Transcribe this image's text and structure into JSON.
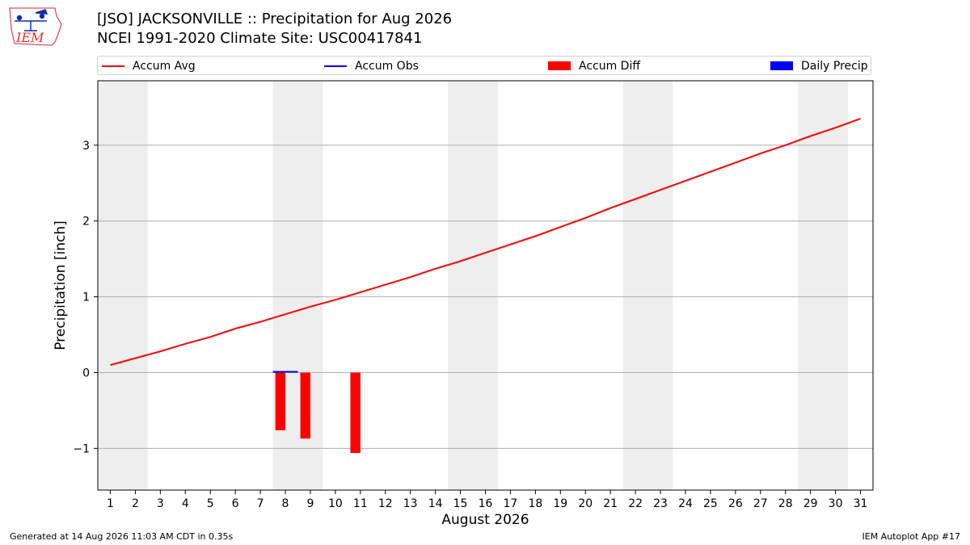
{
  "logo": {
    "text": "IEM",
    "icon": "iowa-weather-station-logo",
    "color": "#e03030"
  },
  "title": {
    "line1": "[JSO] JACKSONVILLE :: Precipitation for Aug 2026",
    "line2": "NCEI 1991-2020 Climate Site: USC00417841"
  },
  "legend": {
    "items": [
      {
        "label": "Accum Avg",
        "kind": "line",
        "color": "#ff0000"
      },
      {
        "label": "Accum Obs",
        "kind": "line",
        "color": "#0000ff"
      },
      {
        "label": "Accum Diff",
        "kind": "box",
        "color": "#ff0000"
      },
      {
        "label": "Daily Precip",
        "kind": "box",
        "color": "#0000ff"
      }
    ]
  },
  "footer": {
    "left": "Generated at 14 Aug 2026 11:03 AM CDT in 0.35s",
    "right": "IEM Autoplot App #17"
  },
  "chart_data": {
    "type": "line",
    "xlabel": "August 2026",
    "ylabel": "Precipitation [inch]",
    "xlim": [
      0.5,
      31.5
    ],
    "ylim": [
      -1.55,
      3.85
    ],
    "x_ticks": [
      1,
      2,
      3,
      4,
      5,
      6,
      7,
      8,
      9,
      10,
      11,
      12,
      13,
      14,
      15,
      16,
      17,
      18,
      19,
      20,
      21,
      22,
      23,
      24,
      25,
      26,
      27,
      28,
      29,
      30,
      31
    ],
    "y_ticks": [
      {
        "value": 3,
        "label": "3"
      },
      {
        "value": 2,
        "label": "2"
      },
      {
        "value": 1,
        "label": "1"
      },
      {
        "value": 0,
        "label": "0"
      },
      {
        "value": -1,
        "label": "−1"
      }
    ],
    "grid": "horizontal",
    "legend_position": "top",
    "weekend_shading": {
      "color": "#eeeeee",
      "ranges": [
        [
          0.5,
          2.5
        ],
        [
          7.5,
          9.5
        ],
        [
          14.5,
          16.5
        ],
        [
          21.5,
          23.5
        ],
        [
          28.5,
          30.5
        ]
      ]
    },
    "series": [
      {
        "name": "Accum Avg",
        "kind": "line",
        "color": "#ff0000",
        "x": [
          1,
          2,
          3,
          4,
          5,
          6,
          7,
          8,
          9,
          10,
          11,
          12,
          13,
          14,
          15,
          16,
          17,
          18,
          19,
          20,
          21,
          22,
          23,
          24,
          25,
          26,
          27,
          28,
          29,
          30,
          31
        ],
        "values": [
          0.1,
          0.19,
          0.28,
          0.38,
          0.47,
          0.58,
          0.67,
          0.77,
          0.87,
          0.96,
          1.06,
          1.16,
          1.26,
          1.37,
          1.47,
          1.58,
          1.69,
          1.8,
          1.92,
          2.04,
          2.17,
          2.29,
          2.41,
          2.53,
          2.65,
          2.77,
          2.89,
          3.0,
          3.12,
          3.23,
          3.35
        ]
      },
      {
        "name": "Accum Obs",
        "kind": "line",
        "color": "#0000ff",
        "x": [
          8,
          9
        ],
        "values": [
          0.01,
          0.01
        ]
      },
      {
        "name": "Accum Diff",
        "kind": "bar",
        "color": "#ff0000",
        "x": [
          8,
          9,
          11
        ],
        "values": [
          -0.76,
          -0.87,
          -1.06
        ]
      },
      {
        "name": "Daily Precip",
        "kind": "bar",
        "color": "#0000ff",
        "x": [
          8,
          9
        ],
        "values": [
          0.01,
          0.0
        ]
      }
    ]
  }
}
